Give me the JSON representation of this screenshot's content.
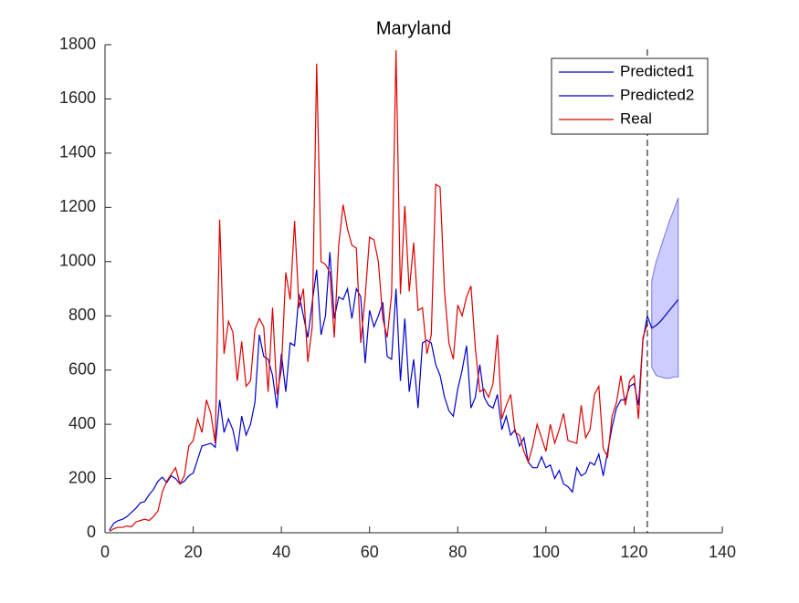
{
  "chart_data": {
    "type": "line",
    "title": "Maryland",
    "x": [
      1,
      2,
      3,
      4,
      5,
      6,
      7,
      8,
      9,
      10,
      11,
      12,
      13,
      14,
      15,
      16,
      17,
      18,
      19,
      20,
      21,
      22,
      23,
      24,
      25,
      26,
      27,
      28,
      29,
      30,
      31,
      32,
      33,
      34,
      35,
      36,
      37,
      38,
      39,
      40,
      41,
      42,
      43,
      44,
      45,
      46,
      47,
      48,
      49,
      50,
      51,
      52,
      53,
      54,
      55,
      56,
      57,
      58,
      59,
      60,
      61,
      62,
      63,
      64,
      65,
      66,
      67,
      68,
      69,
      70,
      71,
      72,
      73,
      74,
      75,
      76,
      77,
      78,
      79,
      80,
      81,
      82,
      83,
      84,
      85,
      86,
      87,
      88,
      89,
      90,
      91,
      92,
      93,
      94,
      95,
      96,
      97,
      98,
      99,
      100,
      101,
      102,
      103,
      104,
      105,
      106,
      107,
      108,
      109,
      110,
      111,
      112,
      113,
      114,
      115,
      116,
      117,
      118,
      119,
      120,
      121,
      122,
      123
    ],
    "series": [
      {
        "name": "Predicted1",
        "color": "#0000cc",
        "values": [
          10,
          35,
          45,
          50,
          60,
          75,
          90,
          110,
          115,
          140,
          160,
          190,
          205,
          185,
          210,
          200,
          180,
          190,
          210,
          220,
          270,
          320,
          325,
          330,
          315,
          490,
          370,
          420,
          380,
          300,
          430,
          360,
          400,
          480,
          730,
          650,
          640,
          580,
          460,
          660,
          520,
          700,
          690,
          880,
          800,
          720,
          850,
          970,
          730,
          800,
          1035,
          790,
          870,
          860,
          900,
          790,
          900,
          870,
          625,
          820,
          760,
          800,
          850,
          650,
          640,
          900,
          560,
          790,
          520,
          640,
          460,
          700,
          710,
          700,
          620,
          580,
          500,
          450,
          430,
          530,
          600,
          690,
          460,
          500,
          620,
          500,
          470,
          460,
          510,
          380,
          430,
          360,
          380,
          320,
          350,
          260,
          240,
          240,
          280,
          240,
          250,
          200,
          230,
          180,
          170,
          150,
          240,
          210,
          220,
          260,
          250,
          290,
          210,
          300,
          390,
          460,
          490,
          490,
          540,
          550,
          470,
          710,
          800
        ]
      },
      {
        "name": "Predicted2",
        "color": "#0000cc",
        "x": [
          123,
          124,
          125,
          126,
          127,
          128,
          129,
          130
        ],
        "values": [
          800,
          755,
          765,
          780,
          800,
          820,
          840,
          860
        ]
      },
      {
        "name": "Real",
        "color": "#dd0000",
        "values": [
          5,
          15,
          20,
          20,
          25,
          22,
          40,
          45,
          50,
          45,
          60,
          80,
          150,
          190,
          215,
          240,
          180,
          210,
          320,
          340,
          420,
          370,
          490,
          440,
          330,
          1155,
          660,
          780,
          740,
          560,
          705,
          540,
          560,
          750,
          790,
          760,
          520,
          830,
          510,
          600,
          960,
          860,
          1150,
          830,
          900,
          630,
          760,
          1730,
          1000,
          990,
          960,
          720,
          1060,
          1210,
          1120,
          1060,
          1050,
          700,
          870,
          1090,
          1080,
          1000,
          790,
          720,
          880,
          1780,
          880,
          1205,
          890,
          1070,
          820,
          830,
          660,
          730,
          1285,
          1275,
          890,
          700,
          640,
          840,
          800,
          870,
          910,
          680,
          520,
          530,
          500,
          550,
          730,
          420,
          470,
          510,
          370,
          360,
          300,
          260,
          320,
          400,
          350,
          300,
          400,
          330,
          380,
          440,
          340,
          335,
          330,
          470,
          350,
          380,
          510,
          540,
          310,
          280,
          430,
          480,
          580,
          470,
          560,
          580,
          420,
          720,
          770
        ]
      }
    ],
    "band": {
      "x": [
        124,
        125,
        126,
        127,
        128,
        129,
        130
      ],
      "upper": [
        930,
        1000,
        1050,
        1100,
        1150,
        1190,
        1235
      ],
      "lower": [
        610,
        580,
        575,
        570,
        570,
        575,
        575
      ],
      "color": "#ccccff"
    },
    "vline": 123,
    "xlim": [
      0,
      140
    ],
    "xticks": [
      0,
      20,
      40,
      60,
      80,
      100,
      120,
      140
    ],
    "ylim": [
      0,
      1800
    ],
    "yticks": [
      0,
      200,
      400,
      600,
      800,
      1000,
      1200,
      1400,
      1600,
      1800
    ],
    "legend": "upper right"
  }
}
